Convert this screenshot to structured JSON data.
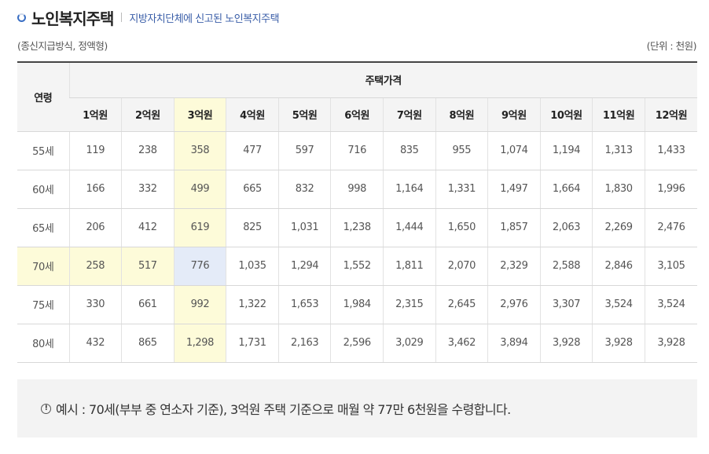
{
  "header": {
    "title": "노인복지주택",
    "subtitle": "지방자치단체에 신고된 노인복지주택"
  },
  "meta": {
    "method": "(종신지급방식, 정액형)",
    "unit": "(단위 : 천원)"
  },
  "table": {
    "age_header": "연령",
    "group_header": "주택가격",
    "price_headers": [
      "1억원",
      "2억원",
      "3억원",
      "4억원",
      "5억원",
      "6억원",
      "7억원",
      "8억원",
      "9억원",
      "10억원",
      "11억원",
      "12억원"
    ],
    "rows": [
      {
        "age": "55세",
        "values": [
          "119",
          "238",
          "358",
          "477",
          "597",
          "716",
          "835",
          "955",
          "1,074",
          "1,194",
          "1,313",
          "1,433"
        ]
      },
      {
        "age": "60세",
        "values": [
          "166",
          "332",
          "499",
          "665",
          "832",
          "998",
          "1,164",
          "1,331",
          "1,497",
          "1,664",
          "1,830",
          "1,996"
        ]
      },
      {
        "age": "65세",
        "values": [
          "206",
          "412",
          "619",
          "825",
          "1,031",
          "1,238",
          "1,444",
          "1,650",
          "1,857",
          "2,063",
          "2,269",
          "2,476"
        ]
      },
      {
        "age": "70세",
        "values": [
          "258",
          "517",
          "776",
          "1,035",
          "1,294",
          "1,552",
          "1,811",
          "2,070",
          "2,329",
          "2,588",
          "2,846",
          "3,105"
        ]
      },
      {
        "age": "75세",
        "values": [
          "330",
          "661",
          "992",
          "1,322",
          "1,653",
          "1,984",
          "2,315",
          "2,645",
          "2,976",
          "3,307",
          "3,524",
          "3,524"
        ]
      },
      {
        "age": "80세",
        "values": [
          "432",
          "865",
          "1,298",
          "1,731",
          "2,163",
          "2,596",
          "3,029",
          "3,462",
          "3,894",
          "3,928",
          "3,928",
          "3,928"
        ]
      }
    ],
    "highlight": {
      "row_color": "#fdfbd9",
      "column_color": "#fdfbd9",
      "cell_color": "#e4ebf8"
    }
  },
  "note": {
    "icon": "info-circle-icon",
    "icon_glyph": "!",
    "text": "예시 : 70세(부부 중 연소자 기준), 3억원 주택 기준으로 매월 약 77만 6천원을 수령합니다."
  }
}
